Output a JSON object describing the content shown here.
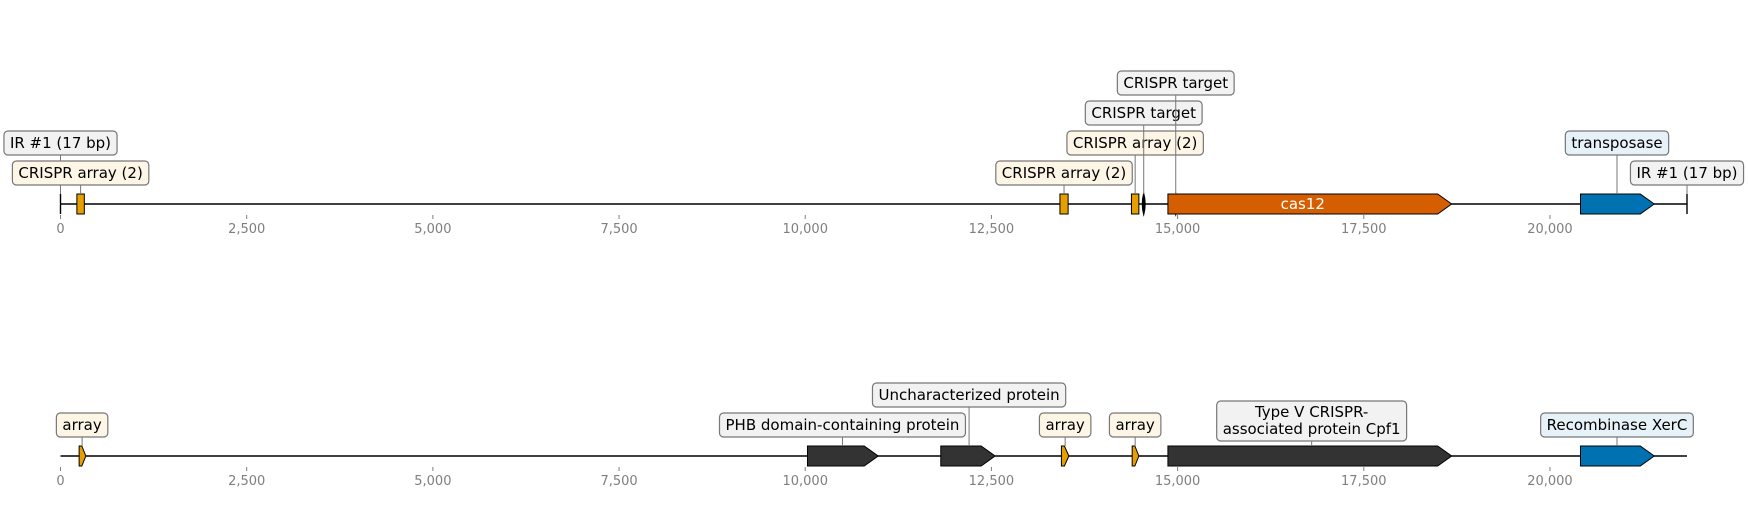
{
  "tracks": [
    {
      "id": "track-1",
      "ticks": [
        "0",
        "2,500",
        "5,000",
        "7,500",
        "10,000",
        "12,500",
        "15,000",
        "17,500",
        "20,000"
      ],
      "features": [
        {
          "name": "ir-marker-left",
          "start": 0,
          "end": 0,
          "strand": 0,
          "kind": "tick"
        },
        {
          "name": "crispr-array-1",
          "start": 220,
          "end": 320,
          "strand": 0,
          "kind": "box",
          "color": "#e69f00"
        },
        {
          "name": "crispr-array-2",
          "start": 13420,
          "end": 13530,
          "strand": 0,
          "kind": "box",
          "color": "#e69f00"
        },
        {
          "name": "crispr-array-3",
          "start": 14380,
          "end": 14480,
          "strand": 0,
          "kind": "box",
          "color": "#e69f00"
        },
        {
          "name": "crispr-target-1",
          "start": 14520,
          "end": 14570,
          "strand": 0,
          "kind": "lens"
        },
        {
          "name": "crispr-target-2",
          "start": 14950,
          "end": 15000,
          "strand": 0,
          "kind": "lens"
        },
        {
          "name": "cas12",
          "start": 14870,
          "end": 18680,
          "strand": 1,
          "kind": "arrow",
          "color": "#d55e00",
          "label": "cas12"
        },
        {
          "name": "transposase",
          "start": 20410,
          "end": 21400,
          "strand": 1,
          "kind": "arrow",
          "color": "#0072b2"
        },
        {
          "name": "ir-marker-right",
          "start": 21840,
          "end": 21840,
          "strand": 0,
          "kind": "tick"
        }
      ],
      "labels": [
        {
          "name": "label-ir-left",
          "text": "IR #1 (17 bp)",
          "anchor": 0,
          "level": 2,
          "fill": "#f2f2f2"
        },
        {
          "name": "label-crispr-array-1",
          "text": "CRISPR array (2)",
          "anchor": 270,
          "level": 1,
          "fill": "#fdf6e6"
        },
        {
          "name": "label-crispr-array-2",
          "text": "CRISPR array (2)",
          "anchor": 13475,
          "level": 1,
          "fill": "#fdf6e6"
        },
        {
          "name": "label-crispr-array-3",
          "text": "CRISPR array (2)",
          "anchor": 14430,
          "level": 2,
          "fill": "#fdf6e6"
        },
        {
          "name": "label-crispr-target-1",
          "text": "CRISPR target",
          "anchor": 14545,
          "level": 3,
          "fill": "#f2f2f2"
        },
        {
          "name": "label-crispr-target-2",
          "text": "CRISPR target",
          "anchor": 14975,
          "level": 4,
          "fill": "#f2f2f2"
        },
        {
          "name": "label-transposase",
          "text": "transposase",
          "anchor": 20900,
          "level": 2,
          "fill": "#e6f1f8"
        },
        {
          "name": "label-ir-right",
          "text": "IR #1 (17 bp)",
          "anchor": 21840,
          "level": 1,
          "fill": "#f2f2f2"
        }
      ]
    },
    {
      "id": "track-2",
      "ticks": [
        "0",
        "2,500",
        "5,000",
        "7,500",
        "10,000",
        "12,500",
        "15,000",
        "17,500",
        "20,000"
      ],
      "features": [
        {
          "name": "array-1",
          "start": 250,
          "end": 340,
          "strand": 1,
          "kind": "arrow",
          "color": "#e69f00"
        },
        {
          "name": "phb-protein",
          "start": 10030,
          "end": 10980,
          "strand": 1,
          "kind": "arrow",
          "color": "#333333"
        },
        {
          "name": "uncharacterized-protein",
          "start": 11820,
          "end": 12550,
          "strand": 1,
          "kind": "arrow",
          "color": "#333333"
        },
        {
          "name": "array-2",
          "start": 13440,
          "end": 13540,
          "strand": 1,
          "kind": "arrow",
          "color": "#e69f00"
        },
        {
          "name": "array-3",
          "start": 14390,
          "end": 14480,
          "strand": 1,
          "kind": "arrow",
          "color": "#e69f00"
        },
        {
          "name": "cpf1-protein",
          "start": 14870,
          "end": 18680,
          "strand": 1,
          "kind": "arrow",
          "color": "#333333"
        },
        {
          "name": "recombinase-xerc",
          "start": 20410,
          "end": 21400,
          "strand": 1,
          "kind": "arrow",
          "color": "#0072b2"
        }
      ],
      "labels": [
        {
          "name": "label-array-1",
          "text": "array",
          "anchor": 290,
          "level": 1,
          "fill": "#fdf6e6"
        },
        {
          "name": "label-phb-protein",
          "text": "PHB domain-containing protein",
          "anchor": 10500,
          "level": 1,
          "fill": "#f2f2f2"
        },
        {
          "name": "label-uncharacterized-protein",
          "text": "Uncharacterized protein",
          "anchor": 12200,
          "level": 2,
          "fill": "#f2f2f2"
        },
        {
          "name": "label-array-2",
          "text": "array",
          "anchor": 13490,
          "level": 1,
          "fill": "#fdf6e6"
        },
        {
          "name": "label-array-3",
          "text": "array",
          "anchor": 14430,
          "level": 1,
          "fill": "#fdf6e6"
        },
        {
          "name": "label-cpf1-protein",
          "text": "Type V CRISPR-\nassociated protein Cpf1",
          "anchor": 16800,
          "level": 1,
          "fill": "#f2f2f2"
        },
        {
          "name": "label-recombinase-xerc",
          "text": "Recombinase XerC",
          "anchor": 20900,
          "level": 1,
          "fill": "#e6f1f8"
        }
      ]
    }
  ],
  "axis_max": 21840
}
